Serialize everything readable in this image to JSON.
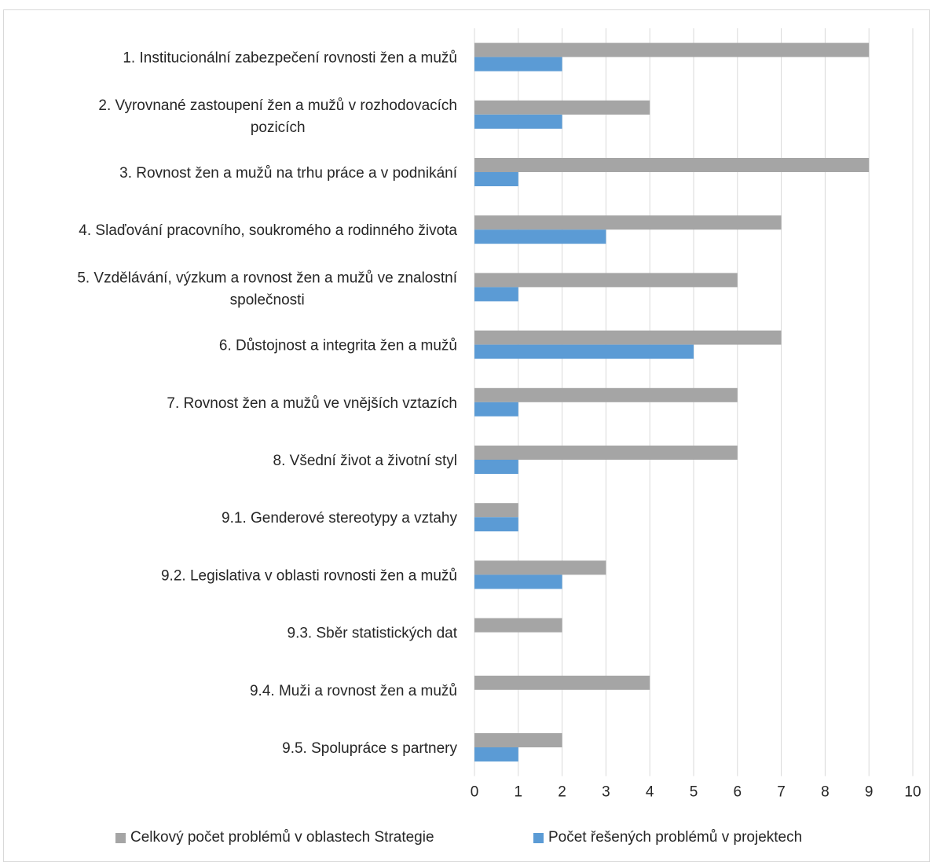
{
  "chart_data": {
    "type": "bar",
    "orientation": "horizontal",
    "categories": [
      [
        "1. Institucionální zabezpečení rovnosti žen a mužů"
      ],
      [
        "2. Vyrovnané zastoupení žen a mužů v rozhodovacích",
        "pozicích"
      ],
      [
        "3. Rovnost žen a mužů na trhu práce a v podnikání"
      ],
      [
        "4. Slaďování pracovního, soukromého a rodinného života"
      ],
      [
        "5. Vzdělávání, výzkum a rovnost žen a mužů ve znalostní",
        "společnosti"
      ],
      [
        "6. Důstojnost a integrita žen a mužů"
      ],
      [
        "7. Rovnost žen a mužů ve vnějších vztazích"
      ],
      [
        "8. Všední život a životní styl"
      ],
      [
        "9.1. Genderové stereotypy a vztahy"
      ],
      [
        "9.2. Legislativa v oblasti rovnosti žen a mužů"
      ],
      [
        "9.3. Sběr statistických dat"
      ],
      [
        "9.4. Muži a rovnost žen a mužů"
      ],
      [
        "9.5. Spolupráce s partnery"
      ]
    ],
    "series": [
      {
        "name": "Celkový počet problémů v oblastech Strategie",
        "color": "#a5a5a5",
        "values": [
          9,
          4,
          9,
          7,
          6,
          7,
          6,
          6,
          1,
          3,
          2,
          4,
          2
        ]
      },
      {
        "name": "Počet řešených problémů v projektech",
        "color": "#5b9bd5",
        "values": [
          2,
          2,
          1,
          3,
          1,
          5,
          1,
          1,
          1,
          2,
          0,
          0,
          1
        ]
      }
    ],
    "xlim": [
      0,
      10
    ],
    "xticks": [
      0,
      1,
      2,
      3,
      4,
      5,
      6,
      7,
      8,
      9,
      10
    ],
    "grid": "vertical",
    "legend_position": "bottom",
    "title": "",
    "xlabel": "",
    "ylabel": ""
  }
}
